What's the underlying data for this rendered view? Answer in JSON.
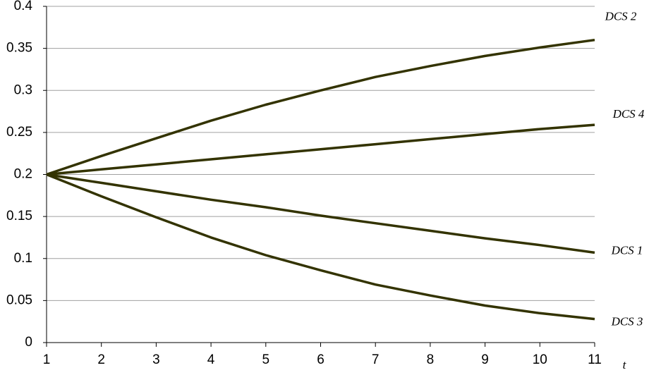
{
  "chart_data": {
    "type": "line",
    "x_label": "t",
    "x": [
      1,
      2,
      3,
      4,
      5,
      6,
      7,
      8,
      9,
      10,
      11
    ],
    "xlim": [
      1,
      11
    ],
    "xticks": [
      1,
      2,
      3,
      4,
      5,
      6,
      7,
      8,
      9,
      10,
      11
    ],
    "ylim": [
      0,
      0.4
    ],
    "yticks": [
      0,
      0.05,
      0.1,
      0.15,
      0.2,
      0.25,
      0.3,
      0.35,
      0.4
    ],
    "grid": true,
    "series": [
      {
        "name": "DCS 2",
        "color": "#333300",
        "values": [
          0.2,
          0.222,
          0.243,
          0.264,
          0.283,
          0.3,
          0.316,
          0.329,
          0.341,
          0.351,
          0.36
        ]
      },
      {
        "name": "DCS 4",
        "color": "#333300",
        "values": [
          0.2,
          0.206,
          0.212,
          0.218,
          0.224,
          0.23,
          0.236,
          0.242,
          0.248,
          0.254,
          0.259
        ]
      },
      {
        "name": "DCS 1",
        "color": "#333300",
        "values": [
          0.2,
          0.19,
          0.18,
          0.17,
          0.161,
          0.151,
          0.142,
          0.133,
          0.124,
          0.116,
          0.107
        ]
      },
      {
        "name": "DCS 3",
        "color": "#333300",
        "values": [
          0.2,
          0.174,
          0.149,
          0.125,
          0.104,
          0.086,
          0.069,
          0.056,
          0.044,
          0.035,
          0.028
        ]
      }
    ]
  }
}
